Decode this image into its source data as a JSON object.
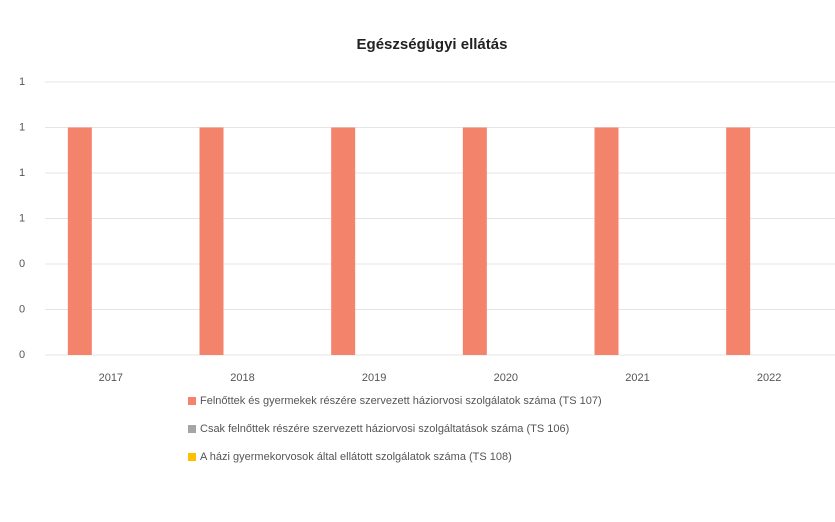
{
  "chart_data": {
    "type": "bar",
    "title": "Egészségügyi ellátás",
    "categories": [
      "2017",
      "2018",
      "2019",
      "2020",
      "2021",
      "2022"
    ],
    "series": [
      {
        "name": "Felnőttek és gyermekek részére szervezett háziorvosi szolgálatok száma (TS 107)",
        "color": "#f4836b",
        "values": [
          1,
          1,
          1,
          1,
          1,
          1
        ]
      },
      {
        "name": "Csak felnőttek részére szervezett háziorvosi szolgáltatások száma (TS 106)",
        "color": "#a5a5a5",
        "values": [
          0,
          0,
          0,
          0,
          0,
          0
        ]
      },
      {
        "name": "A házi gyermekorvosok által ellátott szolgálatok száma (TS 108)",
        "color": "#ffc000",
        "values": [
          0,
          0,
          0,
          0,
          0,
          0
        ]
      }
    ],
    "ylim": [
      0,
      1.2
    ],
    "yticks": [
      0,
      {
        "value": 0.2,
        "label": "0"
      },
      {
        "value": 0.4,
        "label": "0"
      },
      {
        "value": 0.6,
        "label": "1"
      },
      {
        "value": 0.8,
        "label": "1"
      },
      1,
      {
        "value": 1.2,
        "label": "1"
      }
    ],
    "grid": true
  }
}
